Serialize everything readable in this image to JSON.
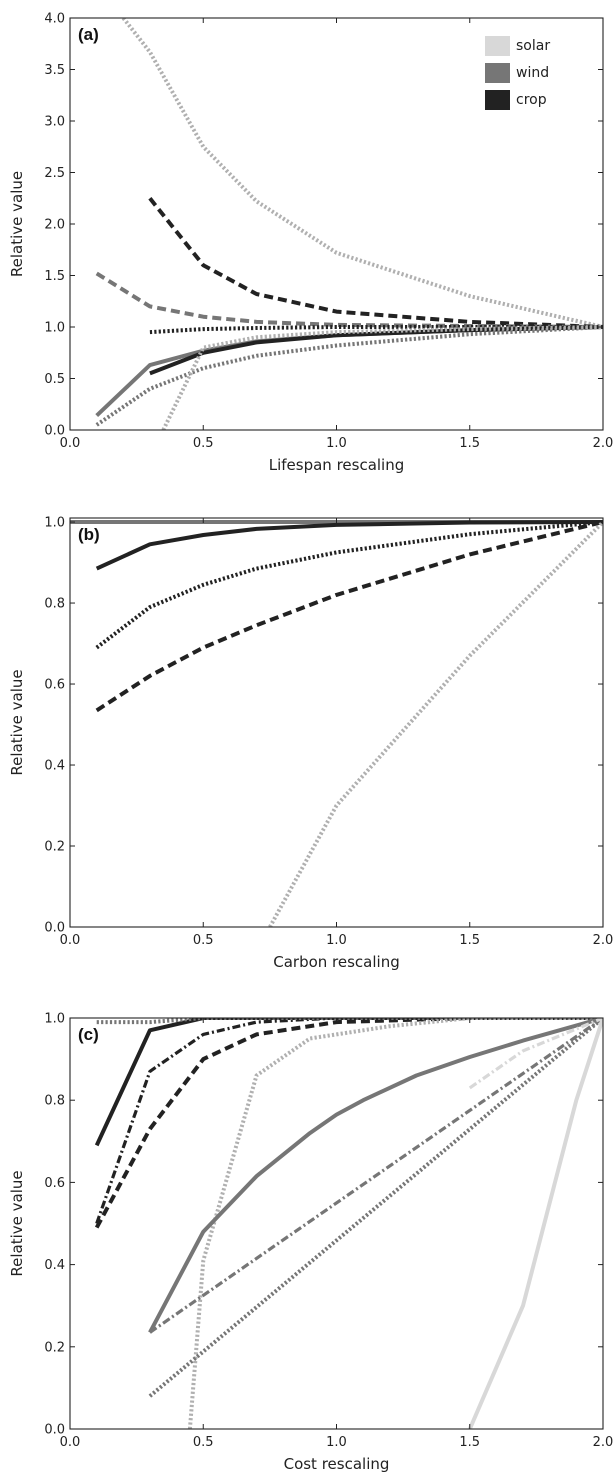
{
  "colors": {
    "solar": "#d8d8d8",
    "wind": "#767676",
    "crop": "#222222",
    "axis": "#222222"
  },
  "chart_data": [
    {
      "type": "line",
      "panel_label": "(a)",
      "xlabel": "Lifespan rescaling",
      "ylabel": "Relative value",
      "xlim": [
        0,
        2
      ],
      "ylim": [
        0,
        4
      ],
      "xticks": [
        "0.0",
        "0.5",
        "1.0",
        "1.5",
        "2.0"
      ],
      "yticks": [
        "0.0",
        "0.5",
        "1.0",
        "1.5",
        "2.0",
        "2.5",
        "3.0",
        "3.5",
        "4.0"
      ],
      "legend": {
        "placement": "top-right",
        "entries": [
          {
            "name": "solar",
            "color": "#d8d8d8"
          },
          {
            "name": "wind",
            "color": "#767676"
          },
          {
            "name": "crop",
            "color": "#222222"
          }
        ]
      },
      "series": [
        {
          "color": "#b0b0b0",
          "style": "dotted",
          "x": [
            0.2,
            0.3,
            0.5,
            0.7,
            1.0,
            1.5,
            2.0
          ],
          "y": [
            4.0,
            3.67,
            2.75,
            2.22,
            1.72,
            1.3,
            1.0
          ]
        },
        {
          "color": "#222222",
          "style": "dashed",
          "x": [
            0.3,
            0.5,
            0.7,
            1.0,
            1.5,
            2.0
          ],
          "y": [
            2.25,
            1.6,
            1.32,
            1.15,
            1.05,
            1.0
          ]
        },
        {
          "color": "#767676",
          "style": "dashed",
          "x": [
            0.1,
            0.3,
            0.5,
            0.7,
            1.0,
            1.5,
            2.0
          ],
          "y": [
            1.52,
            1.2,
            1.1,
            1.05,
            1.02,
            1.01,
            1.0
          ]
        },
        {
          "color": "#222222",
          "style": "dotted",
          "x": [
            0.3,
            0.5,
            0.7,
            1.0,
            1.5,
            2.0
          ],
          "y": [
            0.95,
            0.98,
            0.99,
            1.0,
            1.0,
            1.0
          ]
        },
        {
          "color": "#767676",
          "style": "solid",
          "x": [
            0.1,
            0.3,
            0.5,
            0.7,
            1.0,
            1.5,
            2.0
          ],
          "y": [
            0.14,
            0.63,
            0.77,
            0.86,
            0.92,
            0.97,
            1.0
          ]
        },
        {
          "color": "#222222",
          "style": "solid",
          "x": [
            0.3,
            0.5,
            0.7,
            1.0,
            1.5,
            2.0
          ],
          "y": [
            0.55,
            0.75,
            0.85,
            0.92,
            0.97,
            1.0
          ]
        },
        {
          "color": "#767676",
          "style": "dotted",
          "x": [
            0.1,
            0.3,
            0.5,
            0.7,
            1.0,
            1.5,
            2.0
          ],
          "y": [
            0.05,
            0.4,
            0.6,
            0.72,
            0.82,
            0.93,
            1.0
          ]
        },
        {
          "color": "#b0b0b0",
          "style": "dotted",
          "x": [
            0.35,
            0.5,
            0.7,
            1.0,
            1.5,
            2.0
          ],
          "y": [
            0.0,
            0.8,
            0.9,
            0.95,
            0.98,
            1.0
          ]
        }
      ]
    },
    {
      "type": "line",
      "panel_label": "(b)",
      "xlabel": "Carbon rescaling",
      "ylabel": "Relative value",
      "xlim": [
        0,
        2
      ],
      "ylim": [
        0,
        1.01
      ],
      "xticks": [
        "0.0",
        "0.5",
        "1.0",
        "1.5",
        "2.0"
      ],
      "yticks": [
        "0.0",
        "0.2",
        "0.4",
        "0.6",
        "0.8",
        "1.0"
      ],
      "series": [
        {
          "color": "#767676",
          "style": "solid",
          "x": [
            0.0,
            2.0
          ],
          "y": [
            1.0,
            1.0
          ]
        },
        {
          "color": "#222222",
          "style": "solid",
          "x": [
            0.1,
            0.3,
            0.5,
            0.7,
            1.0,
            1.5,
            2.0
          ],
          "y": [
            0.885,
            0.945,
            0.968,
            0.983,
            0.993,
            0.999,
            1.0
          ]
        },
        {
          "color": "#222222",
          "style": "dotted",
          "x": [
            0.1,
            0.3,
            0.5,
            0.7,
            1.0,
            1.5,
            2.0
          ],
          "y": [
            0.69,
            0.79,
            0.845,
            0.885,
            0.925,
            0.97,
            1.0
          ]
        },
        {
          "color": "#222222",
          "style": "dashed",
          "x": [
            0.1,
            0.3,
            0.5,
            0.7,
            1.0,
            1.5,
            2.0
          ],
          "y": [
            0.535,
            0.62,
            0.69,
            0.745,
            0.82,
            0.92,
            1.0
          ]
        },
        {
          "color": "#b0b0b0",
          "style": "dotted",
          "x": [
            0.75,
            1.0,
            1.5,
            2.0
          ],
          "y": [
            0.0,
            0.3,
            0.67,
            1.0
          ]
        }
      ]
    },
    {
      "type": "line",
      "panel_label": "(c)",
      "xlabel": "Cost rescaling",
      "ylabel": "Relative value",
      "xlim": [
        0,
        2
      ],
      "ylim": [
        0,
        1.0
      ],
      "xticks": [
        "0.0",
        "0.5",
        "1.0",
        "1.5",
        "2.0"
      ],
      "yticks": [
        "0.0",
        "0.2",
        "0.4",
        "0.6",
        "0.8",
        "1.0"
      ],
      "series": [
        {
          "color": "#222222",
          "style": "solid",
          "x": [
            0.1,
            0.3,
            0.5,
            0.7,
            1.0,
            1.5,
            2.0
          ],
          "y": [
            0.69,
            0.97,
            1.0,
            1.0,
            1.0,
            1.0,
            1.0
          ]
        },
        {
          "color": "#222222",
          "style": "dashdot",
          "x": [
            0.1,
            0.3,
            0.5,
            0.7,
            1.0,
            1.5,
            2.0
          ],
          "y": [
            0.5,
            0.87,
            0.96,
            0.99,
            1.0,
            1.0,
            1.0
          ]
        },
        {
          "color": "#222222",
          "style": "dashed",
          "x": [
            0.1,
            0.3,
            0.5,
            0.7,
            1.0,
            1.5,
            2.0
          ],
          "y": [
            0.49,
            0.73,
            0.9,
            0.96,
            0.99,
            1.0,
            1.0
          ]
        },
        {
          "color": "#767676",
          "style": "dotted",
          "x": [
            0.1,
            0.3,
            0.5,
            0.7,
            1.0,
            1.5,
            2.0
          ],
          "y": [
            0.99,
            0.99,
            1.0,
            1.0,
            1.0,
            1.0,
            1.0
          ]
        },
        {
          "color": "#b0b0b0",
          "style": "dotted",
          "x": [
            0.45,
            0.5,
            0.7,
            0.9,
            1.0,
            1.2,
            1.5,
            2.0
          ],
          "y": [
            0.0,
            0.41,
            0.86,
            0.95,
            0.96,
            0.98,
            1.0,
            1.0
          ]
        },
        {
          "color": "#767676",
          "style": "solid",
          "x": [
            0.3,
            0.5,
            0.7,
            0.9,
            1.0,
            1.1,
            1.3,
            1.5,
            1.7,
            2.0
          ],
          "y": [
            0.235,
            0.48,
            0.615,
            0.72,
            0.765,
            0.8,
            0.86,
            0.905,
            0.945,
            1.0
          ]
        },
        {
          "color": "#767676",
          "style": "dashdot",
          "x": [
            0.3,
            2.0
          ],
          "y": [
            0.235,
            1.0
          ]
        },
        {
          "color": "#767676",
          "style": "dotted",
          "x": [
            0.3,
            2.0
          ],
          "y": [
            0.08,
            1.0
          ]
        },
        {
          "color": "#d8d8d8",
          "style": "dashdot",
          "x": [
            1.5,
            1.7,
            2.0
          ],
          "y": [
            0.83,
            0.92,
            1.0
          ]
        },
        {
          "color": "#d8d8d8",
          "style": "solid",
          "x": [
            1.5,
            1.7,
            1.9,
            2.0
          ],
          "y": [
            0.0,
            0.3,
            0.8,
            1.0
          ]
        }
      ]
    }
  ]
}
